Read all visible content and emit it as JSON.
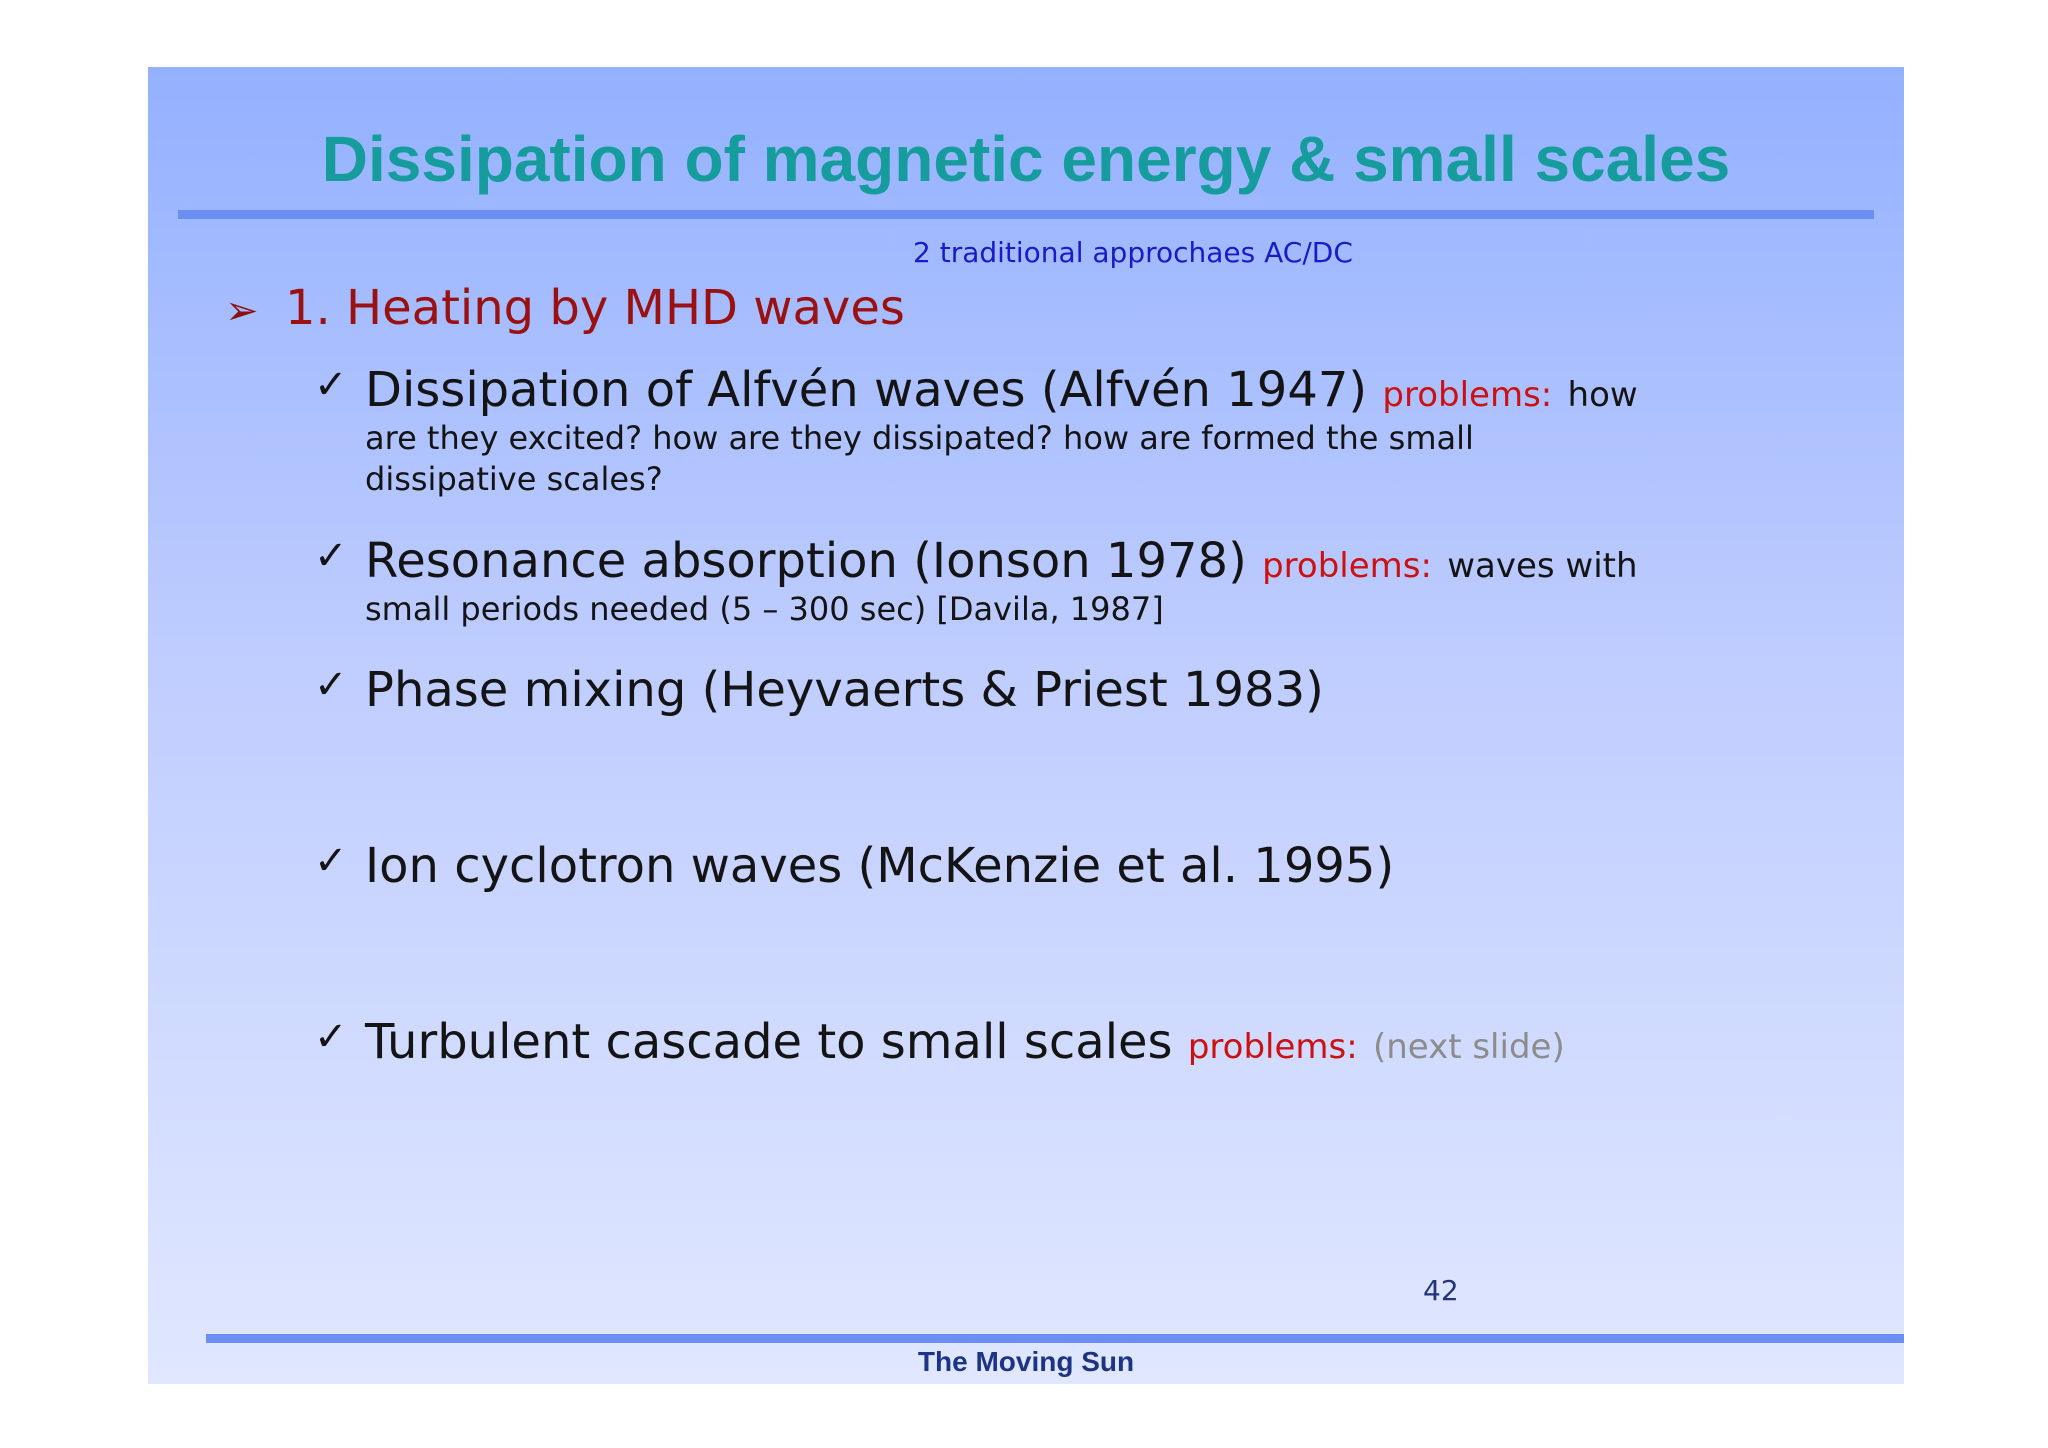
{
  "title": "Dissipation of magnetic energy & small scales",
  "note": "2 traditional approchaes AC/DC",
  "heading": "1. Heating by MHD waves",
  "icons": {
    "heading_bullet": "arrow-bullet-icon",
    "item_bullet": "check-icon"
  },
  "items": [
    {
      "text": "Dissipation of Alfvén waves (Alfvén 1947)",
      "problems_label": "problems:",
      "problems_text": "how",
      "sub_lines": [
        "are they excited? how are they dissipated? how are formed the small",
        "dissipative scales?"
      ]
    },
    {
      "text": "Resonance absorption (Ionson 1978)",
      "problems_label": "problems:",
      "problems_text": "waves with",
      "sub_lines": [
        "small periods needed (5 – 300 sec) [Davila, 1987]"
      ]
    },
    {
      "text": "Phase mixing (Heyvaerts & Priest 1983)"
    },
    {
      "text": "Ion cyclotron waves (McKenzie et al. 1995)"
    },
    {
      "text": "Turbulent cascade to small scales",
      "problems_label": "problems:",
      "problems_text": "(next slide)"
    }
  ],
  "page_number": "42",
  "footer": "The Moving Sun",
  "colors": {
    "title": "#169c9c",
    "heading": "#9a1111",
    "problems": "#cc1111",
    "rule": "#6a8ef2",
    "footer": "#1d3485"
  }
}
